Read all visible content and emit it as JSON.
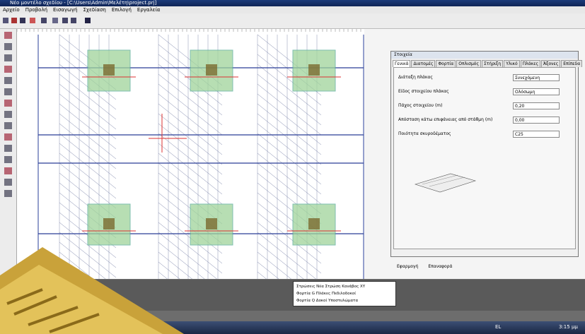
{
  "window": {
    "title": "Νέο μοντέλο σχεδίου - [C:\\Users\\Admin\\Μελέτη\\project.prj]"
  },
  "menu": [
    "Αρχείο",
    "Προβολή",
    "Εισαγωγή",
    "Σχεδίαση",
    "Επιλογή",
    "Εργαλεία"
  ],
  "dialog": {
    "title": "Στοιχεία",
    "tabs": [
      "Γενικά",
      "Διατομές",
      "Φορτία",
      "Οπλισμός",
      "Στήριξη",
      "Υλικό",
      "Πλάκες",
      "Άξονες",
      "Επίπεδα"
    ],
    "rows": [
      {
        "label": "Διάταξη πλάκας",
        "value": "Συνεχόμενη"
      },
      {
        "label": "Είδος στοιχείου πλάκας",
        "value": "Ολόσωμη"
      },
      {
        "label": "Πάχος στοιχείου (m)",
        "value": "0,20"
      },
      {
        "label": "Απόσταση κάτω επιφάνειας από στάθμη (m)",
        "value": "0,00"
      },
      {
        "label": "Ποιότητα σκυροδέματος",
        "value": "C25"
      }
    ],
    "footer": [
      "Εφαρμογή",
      "Επαναφορά"
    ]
  },
  "status": {
    "lines": [
      "Στρώσεις    Νέα Στρώση  Κανάβος  XY",
      "Φορτία G     Πλάκες   Πεδιλοδοκοί",
      "Φορτία Q     Δοκοί    Υποστυλώματα"
    ]
  },
  "taskbar": {
    "lang": "EL",
    "time": "3:15 μμ"
  }
}
